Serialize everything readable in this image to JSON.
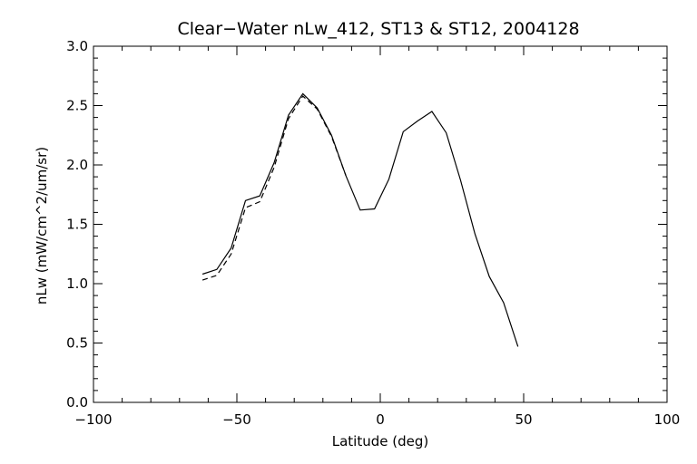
{
  "chart_data": {
    "type": "line",
    "title": "Clear−Water nLw_412, ST13 & ST12, 2004128",
    "xlabel": "Latitude (deg)",
    "ylabel": "nLw (mW/cm^2/um/sr)",
    "xlim": [
      -100,
      100
    ],
    "ylim": [
      0.0,
      3.0
    ],
    "xticks": [
      -100,
      -50,
      0,
      50,
      100
    ],
    "xtick_labels": [
      "−100",
      "−50",
      "0",
      "50",
      "100"
    ],
    "yticks": [
      0.0,
      0.5,
      1.0,
      1.5,
      2.0,
      2.5,
      3.0
    ],
    "ytick_labels": [
      "0.0",
      "0.5",
      "1.0",
      "1.5",
      "2.0",
      "2.5",
      "3.0"
    ],
    "grid": false,
    "series": [
      {
        "style": "solid",
        "x": [
          -62,
          -57,
          -52,
          -47,
          -42,
          -37,
          -32,
          -27,
          -22,
          -17,
          -12,
          -7,
          -2,
          3,
          8,
          13,
          18,
          23,
          28,
          33,
          38,
          43,
          48
        ],
        "y": [
          1.08,
          1.12,
          1.3,
          1.7,
          1.74,
          2.02,
          2.42,
          2.6,
          2.48,
          2.25,
          1.91,
          1.62,
          1.63,
          1.88,
          2.28,
          2.37,
          2.45,
          2.27,
          1.87,
          1.42,
          1.06,
          0.84,
          0.47
        ]
      },
      {
        "style": "dashed",
        "x": [
          -62,
          -57,
          -52,
          -47,
          -42,
          -37,
          -32,
          -27,
          -22,
          -17,
          -12
        ],
        "y": [
          1.03,
          1.07,
          1.25,
          1.64,
          1.69,
          1.98,
          2.39,
          2.58,
          2.47,
          2.24,
          1.91
        ]
      }
    ]
  }
}
